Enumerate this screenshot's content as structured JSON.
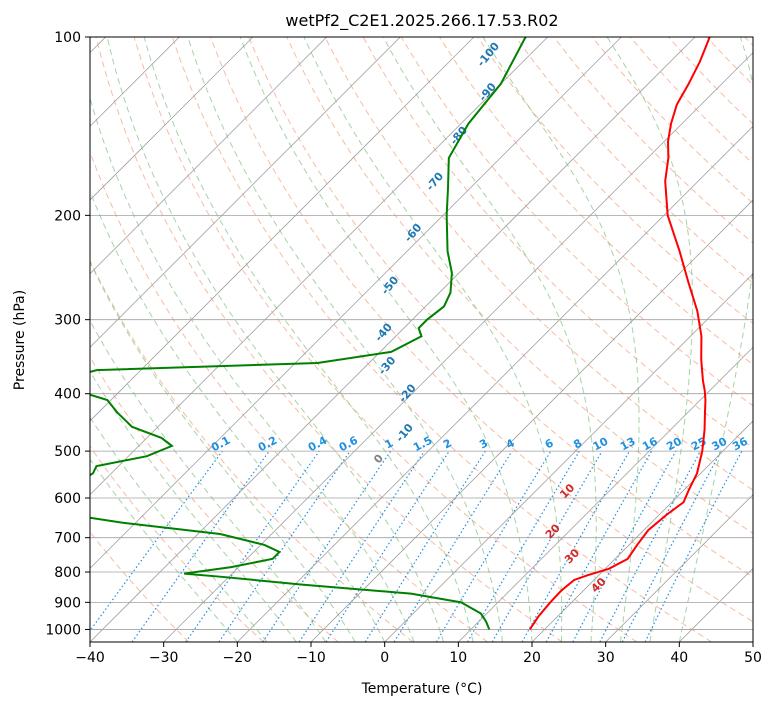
{
  "chart_data": {
    "type": "line",
    "title": "wetPf2_C2E1.2025.266.17.53.R02",
    "xlabel": "Temperature (°C)",
    "ylabel": "Pressure (hPa)",
    "xlim": [
      -40,
      50
    ],
    "ylim": [
      1050,
      100
    ],
    "y_scale": "log",
    "skew": true,
    "grid": true,
    "x_ticks": [
      -40,
      -30,
      -20,
      -10,
      0,
      10,
      20,
      30,
      40,
      50
    ],
    "y_ticks": [
      100,
      200,
      300,
      400,
      500,
      600,
      700,
      800,
      900,
      1000
    ],
    "colors": {
      "temperature": "#ff0000",
      "dewpoint": "#008000",
      "isotherm": "#a0a0a0",
      "dry_adiabat": "#f4a582",
      "moist_adiabat": "#90c890",
      "mixing_ratio": "#1f8fe0",
      "moist_label": "#1f77b4",
      "dry_label": "#d62728"
    },
    "series": [
      {
        "key": "temperature",
        "pressure": [
          1000,
          950,
          900,
          860,
          825,
          810,
          790,
          760,
          720,
          680,
          640,
          610,
          580,
          545,
          500,
          460,
          430,
          410,
          395,
          380,
          350,
          320,
          290,
          260,
          230,
          200,
          175,
          160,
          150,
          140,
          130,
          120,
          110,
          100
        ],
        "values": [
          18,
          17.4,
          17.1,
          17,
          17.3,
          18.5,
          20.5,
          21.7,
          21.1,
          20.6,
          21,
          21.6,
          20.6,
          19.5,
          17.2,
          14.6,
          12.3,
          10.7,
          9.3,
          7.7,
          4.6,
          1.5,
          -2.5,
          -7.5,
          -13,
          -19.5,
          -24.5,
          -27.2,
          -29.5,
          -31.5,
          -33.3,
          -34.5,
          -36,
          -38
        ]
      },
      {
        "key": "dewpoint",
        "pressure": [
          1000,
          970,
          940,
          900,
          870,
          840,
          815,
          805,
          785,
          760,
          740,
          720,
          690,
          660,
          640,
          610,
          580,
          560,
          545,
          530,
          510,
          490,
          475,
          455,
          430,
          410,
          395,
          385,
          375,
          365,
          355,
          340,
          320,
          310,
          300,
          285,
          270,
          250,
          230,
          200,
          180,
          160,
          140,
          120,
          100
        ],
        "values": [
          12.5,
          11,
          9.2,
          5,
          -3,
          -19,
          -31,
          -36.5,
          -31,
          -26.5,
          -26.5,
          -29.5,
          -37,
          -52,
          -60,
          -68,
          -72,
          -63,
          -62.5,
          -63,
          -57.5,
          -55.5,
          -58,
          -63.5,
          -67.5,
          -70.5,
          -76,
          -80,
          -78.5,
          -76,
          -47,
          -38.5,
          -36.5,
          -38,
          -38,
          -37.5,
          -38.5,
          -41,
          -44.5,
          -49.5,
          -53,
          -57,
          -59,
          -60,
          -63
        ]
      }
    ],
    "mixing_ratio_labels": [
      "0.1",
      "0.2",
      "0.4",
      "0.6",
      "1",
      "1.5",
      "2",
      "3",
      "4",
      "6",
      "8",
      "10",
      "13",
      "16",
      "20",
      "25",
      "30",
      "36"
    ],
    "moist_adiabat_labels": [
      "-100",
      "-90",
      "-80",
      "-70",
      "-60",
      "-50",
      "-40",
      "-30",
      "-20",
      "-10",
      "0"
    ],
    "dry_adiabat_labels": [
      "10",
      "20",
      "30",
      "40"
    ]
  }
}
